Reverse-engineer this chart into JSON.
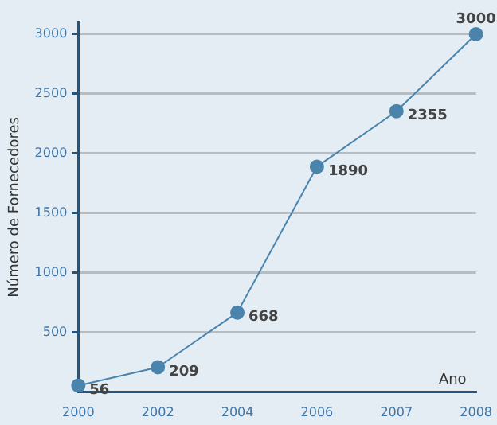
{
  "chart_data": {
    "type": "line",
    "xlabel": "Ano",
    "ylabel": "Número de Fornecedores",
    "categories": [
      "2000",
      "2002",
      "2004",
      "2006",
      "2007",
      "2008"
    ],
    "series": [
      {
        "color": "#4a84ad",
        "values": [
          56,
          209,
          668,
          1890,
          2355,
          3000
        ]
      }
    ],
    "ylim": [
      0,
      3100
    ],
    "yticks": [
      500,
      1000,
      1500,
      2000,
      2500,
      3000
    ],
    "grid": "y",
    "marker": "circle",
    "line_style": "solid",
    "data_labels": true,
    "legend": false
  }
}
